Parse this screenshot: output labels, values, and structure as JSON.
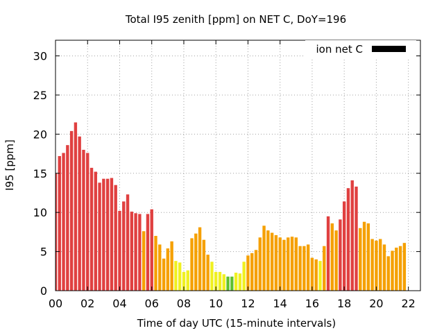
{
  "chart_data": {
    "type": "bar",
    "title": "Total I95 zenith [ppm] on NET C, DoY=196",
    "xlabel": "Time of day UTC (15-minute intervals)",
    "ylabel": "I95 [ppm]",
    "ylim": [
      0,
      32
    ],
    "xlim": [
      0,
      22.75
    ],
    "grid": true,
    "legend": {
      "label": "ion net C",
      "position": "top-right",
      "color": "#000000"
    },
    "x_tick_labels": [
      "00",
      "02",
      "04",
      "06",
      "08",
      "10",
      "12",
      "14",
      "16",
      "18",
      "20",
      "22"
    ],
    "y_tick_labels": [
      "0",
      "5",
      "10",
      "15",
      "20",
      "25",
      "30"
    ],
    "bar_interval_hours": 0.25,
    "color_thresholds": {
      "green_below": 2,
      "yellow_below": 4,
      "orange_below": 9
    },
    "colors": {
      "red": "#e04040",
      "orange": "#f5a000",
      "yellow": "#f0f020",
      "green": "#60c030"
    },
    "values": [
      15.0,
      17.2,
      17.6,
      18.6,
      20.4,
      21.5,
      19.7,
      18.0,
      17.6,
      15.7,
      15.2,
      13.8,
      14.3,
      14.3,
      14.4,
      13.5,
      10.2,
      11.4,
      12.3,
      10.1,
      9.9,
      9.8,
      7.6,
      9.8,
      10.4,
      7.0,
      5.9,
      4.1,
      5.4,
      6.3,
      3.8,
      3.6,
      2.4,
      2.6,
      6.7,
      7.3,
      8.1,
      6.5,
      4.6,
      3.7,
      2.4,
      2.4,
      2.1,
      1.8,
      1.8,
      2.3,
      2.2,
      3.7,
      4.5,
      4.8,
      5.2,
      6.8,
      8.3,
      7.7,
      7.4,
      7.1,
      6.8,
      6.5,
      6.8,
      6.9,
      6.8,
      5.7,
      5.7,
      5.9,
      4.2,
      4.0,
      3.8,
      5.7,
      9.5,
      8.6,
      7.7,
      9.1,
      11.4,
      13.1,
      14.1,
      13.3,
      8.0,
      8.8,
      8.6,
      6.6,
      6.4,
      6.6,
      5.9,
      4.4,
      5.1,
      5.5,
      5.7,
      6.1
    ]
  }
}
